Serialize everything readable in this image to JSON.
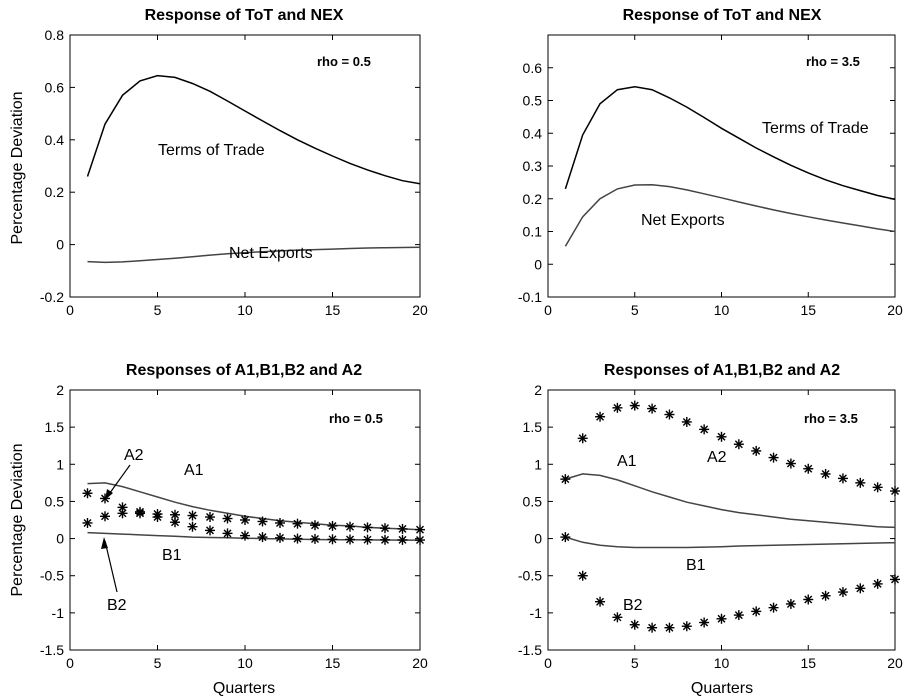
{
  "chart_data": [
    {
      "type": "line",
      "title": "Response of ToT and NEX",
      "xlabel": "",
      "ylabel": "Percentage Deviation",
      "xlim": [
        0,
        20
      ],
      "ylim": [
        -0.2,
        0.8
      ],
      "xticks": [
        "0",
        "5",
        "10",
        "15",
        "20"
      ],
      "yticks": [
        "-0.2",
        "0",
        "0.2",
        "0.4",
        "0.6",
        "0.8"
      ],
      "grid": false,
      "annotation": "rho = 0.5",
      "x": [
        1,
        2,
        3,
        4,
        5,
        6,
        7,
        8,
        9,
        10,
        11,
        12,
        13,
        14,
        15,
        16,
        17,
        18,
        19,
        20
      ],
      "series": [
        {
          "name": "Terms of Trade",
          "values": [
            0.26,
            0.46,
            0.57,
            0.625,
            0.645,
            0.638,
            0.615,
            0.585,
            0.548,
            0.51,
            0.472,
            0.435,
            0.4,
            0.368,
            0.338,
            0.31,
            0.285,
            0.263,
            0.244,
            0.232
          ]
        },
        {
          "name": "Net Exports",
          "values": [
            -0.065,
            -0.068,
            -0.066,
            -0.062,
            -0.057,
            -0.052,
            -0.046,
            -0.04,
            -0.035,
            -0.031,
            -0.027,
            -0.024,
            -0.021,
            -0.019,
            -0.017,
            -0.015,
            -0.013,
            -0.012,
            -0.011,
            -0.01
          ]
        }
      ]
    },
    {
      "type": "line",
      "title": "Response of ToT and NEX",
      "xlabel": "",
      "ylabel": "",
      "xlim": [
        0,
        20
      ],
      "ylim": [
        -0.1,
        0.7
      ],
      "xticks": [
        "0",
        "5",
        "10",
        "15",
        "20"
      ],
      "yticks": [
        "-0.1",
        "0",
        "0.1",
        "0.2",
        "0.3",
        "0.4",
        "0.5",
        "0.6"
      ],
      "grid": false,
      "annotation": "rho = 3.5",
      "x": [
        1,
        2,
        3,
        4,
        5,
        6,
        7,
        8,
        9,
        10,
        11,
        12,
        13,
        14,
        15,
        16,
        17,
        18,
        19,
        20
      ],
      "series": [
        {
          "name": "Terms of Trade",
          "values": [
            0.23,
            0.395,
            0.49,
            0.533,
            0.542,
            0.533,
            0.508,
            0.48,
            0.448,
            0.415,
            0.385,
            0.355,
            0.328,
            0.302,
            0.279,
            0.258,
            0.24,
            0.225,
            0.21,
            0.198
          ]
        },
        {
          "name": "Net Exports",
          "values": [
            0.055,
            0.145,
            0.2,
            0.23,
            0.242,
            0.243,
            0.237,
            0.227,
            0.215,
            0.203,
            0.19,
            0.178,
            0.166,
            0.155,
            0.145,
            0.135,
            0.126,
            0.117,
            0.108,
            0.1
          ]
        }
      ]
    },
    {
      "type": "line",
      "title": "Responses of A1,B1,B2 and A2",
      "xlabel": "Quarters",
      "ylabel": "Percentage Deviation",
      "xlim": [
        0,
        20
      ],
      "ylim": [
        -1.5,
        2
      ],
      "xticks": [
        "0",
        "5",
        "10",
        "15",
        "20"
      ],
      "yticks": [
        "-1.5",
        "-1",
        "-0.5",
        "0",
        "0.5",
        "1",
        "1.5",
        "2"
      ],
      "grid": false,
      "annotation": "rho = 0.5",
      "x": [
        1,
        2,
        3,
        4,
        5,
        6,
        7,
        8,
        9,
        10,
        11,
        12,
        13,
        14,
        15,
        16,
        17,
        18,
        19,
        20
      ],
      "series": [
        {
          "name": "A1",
          "style": "line",
          "values": [
            0.74,
            0.75,
            0.7,
            0.63,
            0.56,
            0.49,
            0.43,
            0.38,
            0.34,
            0.3,
            0.27,
            0.24,
            0.22,
            0.2,
            0.18,
            0.17,
            0.15,
            0.14,
            0.13,
            0.12
          ]
        },
        {
          "name": "A2",
          "style": "marker",
          "values": [
            0.61,
            0.54,
            0.42,
            0.36,
            0.33,
            0.32,
            0.31,
            0.29,
            0.27,
            0.25,
            0.23,
            0.21,
            0.2,
            0.18,
            0.17,
            0.16,
            0.15,
            0.14,
            0.13,
            0.12
          ]
        },
        {
          "name": "B1",
          "style": "line",
          "values": [
            0.08,
            0.07,
            0.06,
            0.05,
            0.04,
            0.03,
            0.02,
            0.015,
            0.01,
            0.005,
            0.0,
            -0.005,
            -0.01,
            -0.012,
            -0.015,
            -0.017,
            -0.018,
            -0.019,
            -0.02,
            -0.02
          ]
        },
        {
          "name": "B2",
          "style": "marker",
          "values": [
            0.21,
            0.3,
            0.34,
            0.34,
            0.29,
            0.22,
            0.16,
            0.11,
            0.07,
            0.04,
            0.02,
            0.01,
            0.0,
            -0.005,
            -0.01,
            -0.012,
            -0.015,
            -0.017,
            -0.018,
            -0.02
          ]
        }
      ],
      "labels": [
        "A2",
        "A1",
        "B1",
        "B2"
      ]
    },
    {
      "type": "line",
      "title": "Responses of A1,B1,B2 and A2",
      "xlabel": "Quarters",
      "ylabel": "",
      "xlim": [
        0,
        20
      ],
      "ylim": [
        -1.5,
        2
      ],
      "xticks": [
        "0",
        "5",
        "10",
        "15",
        "20"
      ],
      "yticks": [
        "-1.5",
        "-1",
        "-0.5",
        "0",
        "0.5",
        "1",
        "1.5",
        "2"
      ],
      "grid": false,
      "annotation": "rho = 3.5",
      "x": [
        1,
        2,
        3,
        4,
        5,
        6,
        7,
        8,
        9,
        10,
        11,
        12,
        13,
        14,
        15,
        16,
        17,
        18,
        19,
        20
      ],
      "series": [
        {
          "name": "A1",
          "style": "line",
          "values": [
            0.8,
            0.87,
            0.85,
            0.79,
            0.71,
            0.63,
            0.56,
            0.49,
            0.44,
            0.39,
            0.35,
            0.32,
            0.29,
            0.26,
            0.24,
            0.22,
            0.2,
            0.18,
            0.16,
            0.15
          ]
        },
        {
          "name": "A2",
          "style": "marker",
          "values": [
            0.8,
            1.35,
            1.64,
            1.76,
            1.79,
            1.75,
            1.67,
            1.57,
            1.47,
            1.37,
            1.27,
            1.18,
            1.09,
            1.01,
            0.94,
            0.87,
            0.81,
            0.75,
            0.69,
            0.64
          ]
        },
        {
          "name": "B1",
          "style": "line",
          "values": [
            0.02,
            -0.05,
            -0.09,
            -0.11,
            -0.12,
            -0.12,
            -0.12,
            -0.12,
            -0.115,
            -0.11,
            -0.1,
            -0.095,
            -0.09,
            -0.085,
            -0.08,
            -0.075,
            -0.07,
            -0.065,
            -0.06,
            -0.055
          ]
        },
        {
          "name": "B2",
          "style": "marker",
          "values": [
            0.02,
            -0.5,
            -0.85,
            -1.06,
            -1.16,
            -1.2,
            -1.2,
            -1.18,
            -1.13,
            -1.08,
            -1.03,
            -0.98,
            -0.93,
            -0.88,
            -0.82,
            -0.77,
            -0.72,
            -0.67,
            -0.61,
            -0.55
          ]
        }
      ],
      "labels": [
        "A1",
        "A2",
        "B1",
        "B2"
      ]
    }
  ]
}
